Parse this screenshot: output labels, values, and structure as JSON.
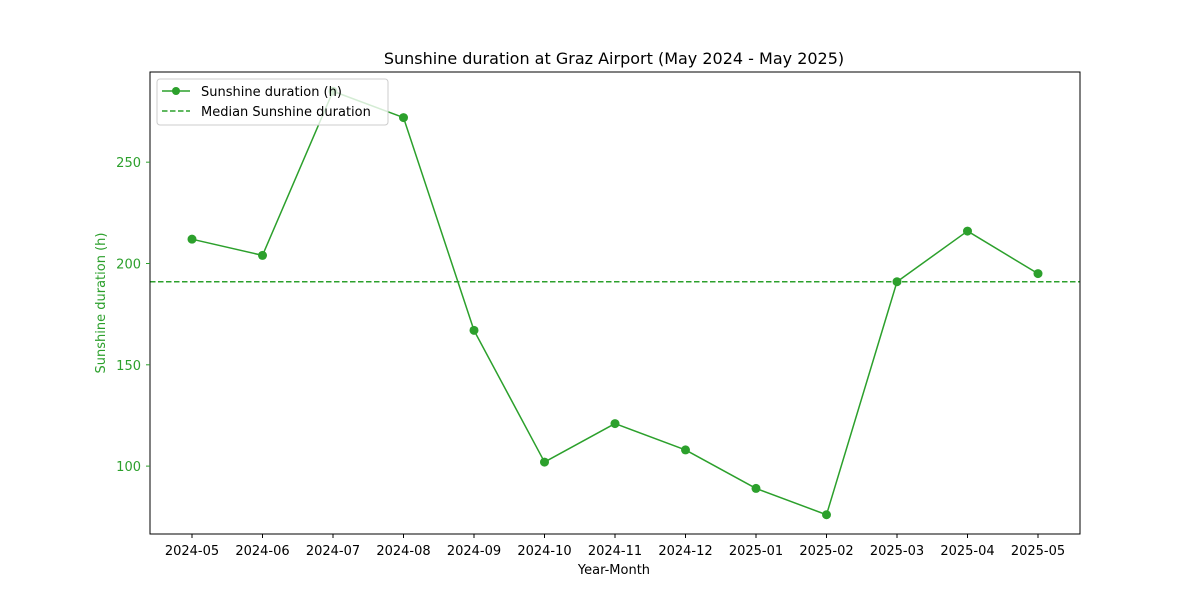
{
  "chart_data": {
    "type": "line",
    "title": "Sunshine duration at Graz Airport (May 2024 - May 2025)",
    "xlabel": "Year-Month",
    "ylabel": "Sunshine duration (h)",
    "categories": [
      "2024-05",
      "2024-06",
      "2024-07",
      "2024-08",
      "2024-09",
      "2024-10",
      "2024-11",
      "2024-12",
      "2025-01",
      "2025-02",
      "2025-03",
      "2025-04",
      "2025-05"
    ],
    "series": [
      {
        "name": "Sunshine duration (h)",
        "values": [
          212,
          204,
          285,
          272,
          167,
          102,
          121,
          108,
          89,
          76,
          191,
          216,
          195
        ],
        "color": "#2ca02c",
        "style": "solid",
        "marker": "circle"
      }
    ],
    "reference_lines": [
      {
        "name": "Median Sunshine duration",
        "value": 191,
        "color": "#2ca02c",
        "style": "dashed"
      }
    ],
    "yticks": [
      100,
      150,
      200,
      250
    ],
    "ylim": [
      66.5,
      294.5
    ],
    "grid": false,
    "legend_position": "top-left",
    "axis_label_color": "#2ca02c"
  }
}
